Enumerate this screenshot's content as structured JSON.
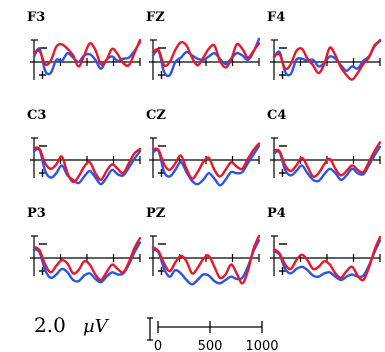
{
  "chart_data": {
    "type": "line",
    "layout": "3x3 grid of ERP waveforms by electrode",
    "electrodes": [
      {
        "id": "F3",
        "red": [
          0.8,
          1.0,
          -0.2,
          0.1,
          1.4,
          1.6,
          1.2,
          0.6,
          -0.4,
          0.6,
          1.7,
          1.1,
          -0.2,
          0.2,
          1.2,
          0.7,
          -0.1,
          -0.3,
          0.8,
          2.0
        ],
        "blue": [
          0.5,
          1.2,
          -0.8,
          -1.0,
          0.2,
          0.1,
          0.8,
          0.4,
          0.0,
          0.6,
          0.7,
          0.2,
          -0.6,
          0.2,
          0.5,
          0.1,
          0.3,
          0.4,
          1.0,
          1.8
        ]
      },
      {
        "id": "FZ",
        "red": [
          0.9,
          1.1,
          -0.3,
          0.0,
          1.1,
          1.8,
          1.5,
          0.4,
          -0.3,
          0.4,
          1.2,
          1.5,
          0.1,
          -0.5,
          0.2,
          1.6,
          1.2,
          0.4,
          1.0,
          1.7
        ],
        "blue": [
          0.6,
          1.0,
          -0.9,
          -1.2,
          0.0,
          0.4,
          0.9,
          0.6,
          0.3,
          0.2,
          0.5,
          0.8,
          0.3,
          -0.2,
          0.3,
          0.8,
          0.6,
          0.2,
          0.9,
          2.1
        ]
      },
      {
        "id": "F4",
        "red": [
          0.5,
          0.7,
          -0.6,
          -0.2,
          1.0,
          1.2,
          0.3,
          -0.3,
          -1.0,
          -0.2,
          1.3,
          0.6,
          -0.5,
          -1.2,
          -1.6,
          -1.0,
          -0.2,
          0.4,
          1.5,
          1.9
        ],
        "blue": [
          0.4,
          0.9,
          -0.9,
          -1.1,
          0.2,
          0.3,
          0.1,
          0.2,
          -0.4,
          -0.1,
          0.5,
          0.3,
          -0.3,
          -0.8,
          -0.4,
          -0.6,
          0.1,
          0.5,
          1.4,
          2.0
        ]
      },
      {
        "id": "C3",
        "red": [
          1.1,
          1.0,
          -0.3,
          -0.8,
          -0.4,
          0.3,
          -1.2,
          -2.0,
          -1.5,
          -0.6,
          -0.2,
          -1.2,
          -1.8,
          -1.0,
          -0.4,
          -0.8,
          -1.2,
          -0.3,
          0.6,
          1.0
        ],
        "blue": [
          0.8,
          0.9,
          -1.0,
          -1.6,
          -1.2,
          -0.5,
          -1.4,
          -1.8,
          -2.1,
          -1.5,
          -1.0,
          -1.6,
          -2.2,
          -1.6,
          -0.9,
          -1.3,
          -1.4,
          -0.7,
          0.1,
          0.8
        ]
      },
      {
        "id": "CZ",
        "red": [
          1.0,
          0.9,
          -0.4,
          -0.9,
          -0.3,
          0.4,
          -0.8,
          -1.7,
          -1.1,
          -0.2,
          0.2,
          -0.9,
          -1.5,
          -0.9,
          -0.2,
          -0.6,
          -0.8,
          0.1,
          0.9,
          1.5
        ],
        "blue": [
          0.7,
          0.8,
          -1.1,
          -1.5,
          -0.9,
          -0.2,
          -1.1,
          -1.9,
          -2.2,
          -1.8,
          -1.2,
          -1.7,
          -2.3,
          -1.8,
          -1.1,
          -1.2,
          -1.1,
          -0.3,
          0.5,
          1.3
        ]
      },
      {
        "id": "C4",
        "red": [
          0.9,
          0.8,
          -0.5,
          -1.0,
          -0.5,
          0.2,
          -0.6,
          -1.5,
          -1.2,
          -0.4,
          0.1,
          -0.8,
          -1.4,
          -1.0,
          -0.5,
          -0.9,
          -1.1,
          -0.2,
          0.8,
          1.6
        ],
        "blue": [
          0.6,
          0.7,
          -0.9,
          -1.4,
          -1.0,
          -0.5,
          -1.2,
          -1.8,
          -1.9,
          -1.3,
          -0.8,
          -1.2,
          -1.8,
          -1.4,
          -0.8,
          -1.2,
          -1.3,
          -0.5,
          0.4,
          1.2
        ]
      },
      {
        "id": "P3",
        "red": [
          1.0,
          0.7,
          -0.6,
          -1.3,
          -0.7,
          -0.2,
          -0.5,
          -1.4,
          -1.1,
          -0.3,
          -0.6,
          -1.5,
          -2.0,
          -1.3,
          -0.6,
          -1.0,
          -1.3,
          -0.4,
          0.9,
          1.8
        ],
        "blue": [
          0.8,
          0.5,
          -1.1,
          -1.8,
          -1.5,
          -1.0,
          -1.3,
          -2.0,
          -2.1,
          -1.6,
          -1.4,
          -1.9,
          -2.2,
          -1.7,
          -1.3,
          -1.5,
          -1.4,
          -0.6,
          0.5,
          1.4
        ]
      },
      {
        "id": "PZ",
        "red": [
          1.0,
          0.6,
          -0.5,
          -1.2,
          -0.4,
          0.2,
          -0.3,
          -1.4,
          -0.9,
          -0.1,
          0.2,
          -0.8,
          -1.8,
          -1.5,
          -0.6,
          -1.4,
          -2.3,
          -1.2,
          0.8,
          2.0
        ],
        "blue": [
          0.8,
          0.5,
          -1.0,
          -1.7,
          -1.1,
          -1.4,
          -2.0,
          -2.4,
          -2.0,
          -1.5,
          -1.6,
          -2.1,
          -2.3,
          -2.0,
          -1.7,
          -1.9,
          -1.8,
          -0.8,
          0.6,
          1.6
        ]
      },
      {
        "id": "P4",
        "red": [
          0.8,
          0.4,
          -0.6,
          -1.0,
          -0.2,
          0.3,
          -0.2,
          -1.0,
          -0.8,
          -0.3,
          -0.6,
          -1.4,
          -1.8,
          -1.2,
          -0.8,
          -1.6,
          -2.0,
          -0.9,
          0.7,
          1.9
        ],
        "blue": [
          0.6,
          0.3,
          -1.0,
          -1.4,
          -1.0,
          -0.8,
          -1.1,
          -1.6,
          -1.7,
          -1.4,
          -1.3,
          -1.7,
          -2.0,
          -1.7,
          -1.5,
          -1.7,
          -1.6,
          -0.7,
          0.5,
          1.6
        ]
      }
    ],
    "series": [
      {
        "color": "#e8182a"
      },
      {
        "color": "#2a55e8"
      }
    ],
    "x_range": [
      0,
      1000
    ],
    "y_range": [
      -2.5,
      2.5
    ],
    "scale_bar": {
      "amplitude": "2.0",
      "unit": "µV",
      "ticks": [
        "0",
        "500",
        "1000"
      ]
    }
  }
}
